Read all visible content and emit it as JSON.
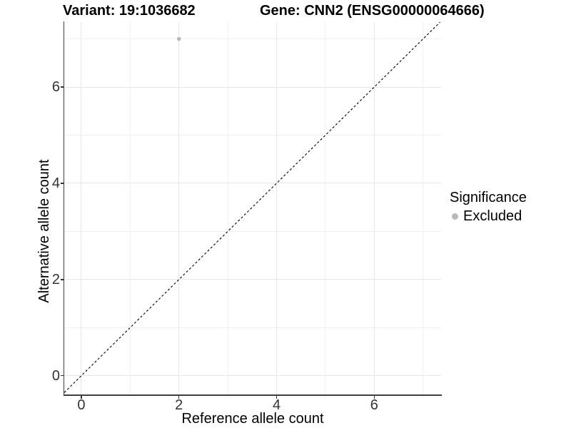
{
  "header": {
    "variant_title": "Variant: 19:1036682",
    "gene_title": "Gene: CNN2 (ENSG00000064666)"
  },
  "axes": {
    "x_label": "Reference allele count",
    "y_label": "Alternative allele count"
  },
  "legend": {
    "title": "Significance",
    "items": [
      {
        "label": "Excluded",
        "color": "#b9b9b9",
        "marker": "circle"
      }
    ]
  },
  "colors": {
    "background": "#ffffff",
    "axis_line": "#3f3f3f",
    "tick_text": "#333333",
    "grid_major": "#e7e7e7",
    "grid_minor": "#f0f0f0",
    "point_excluded": "#b9b9b9",
    "reference_line": "#000000"
  },
  "chart_data": {
    "type": "scatter",
    "title_left": "Variant: 19:1036682",
    "title_right": "Gene: CNN2 (ENSG00000064666)",
    "xlabel": "Reference allele count",
    "ylabel": "Alternative allele count",
    "xlim": [
      -0.35,
      7.37
    ],
    "ylim": [
      -0.39,
      7.35
    ],
    "x_ticks": {
      "major": [
        0,
        2,
        4,
        6
      ],
      "minor": [
        1,
        3,
        5,
        7
      ]
    },
    "y_ticks": {
      "major": [
        0,
        2,
        4,
        6
      ],
      "minor": [
        1,
        3,
        5,
        7
      ]
    },
    "grid": "major and minor gridlines, light gray on white",
    "legend_position": "right",
    "series": [
      {
        "name": "Excluded",
        "color": "#b9b9b9",
        "points": [
          {
            "x": 2,
            "y": 7
          }
        ]
      }
    ],
    "reference_line": {
      "type": "identity",
      "slope": 1,
      "intercept": 0,
      "style": "dashed",
      "color": "#000000"
    }
  }
}
